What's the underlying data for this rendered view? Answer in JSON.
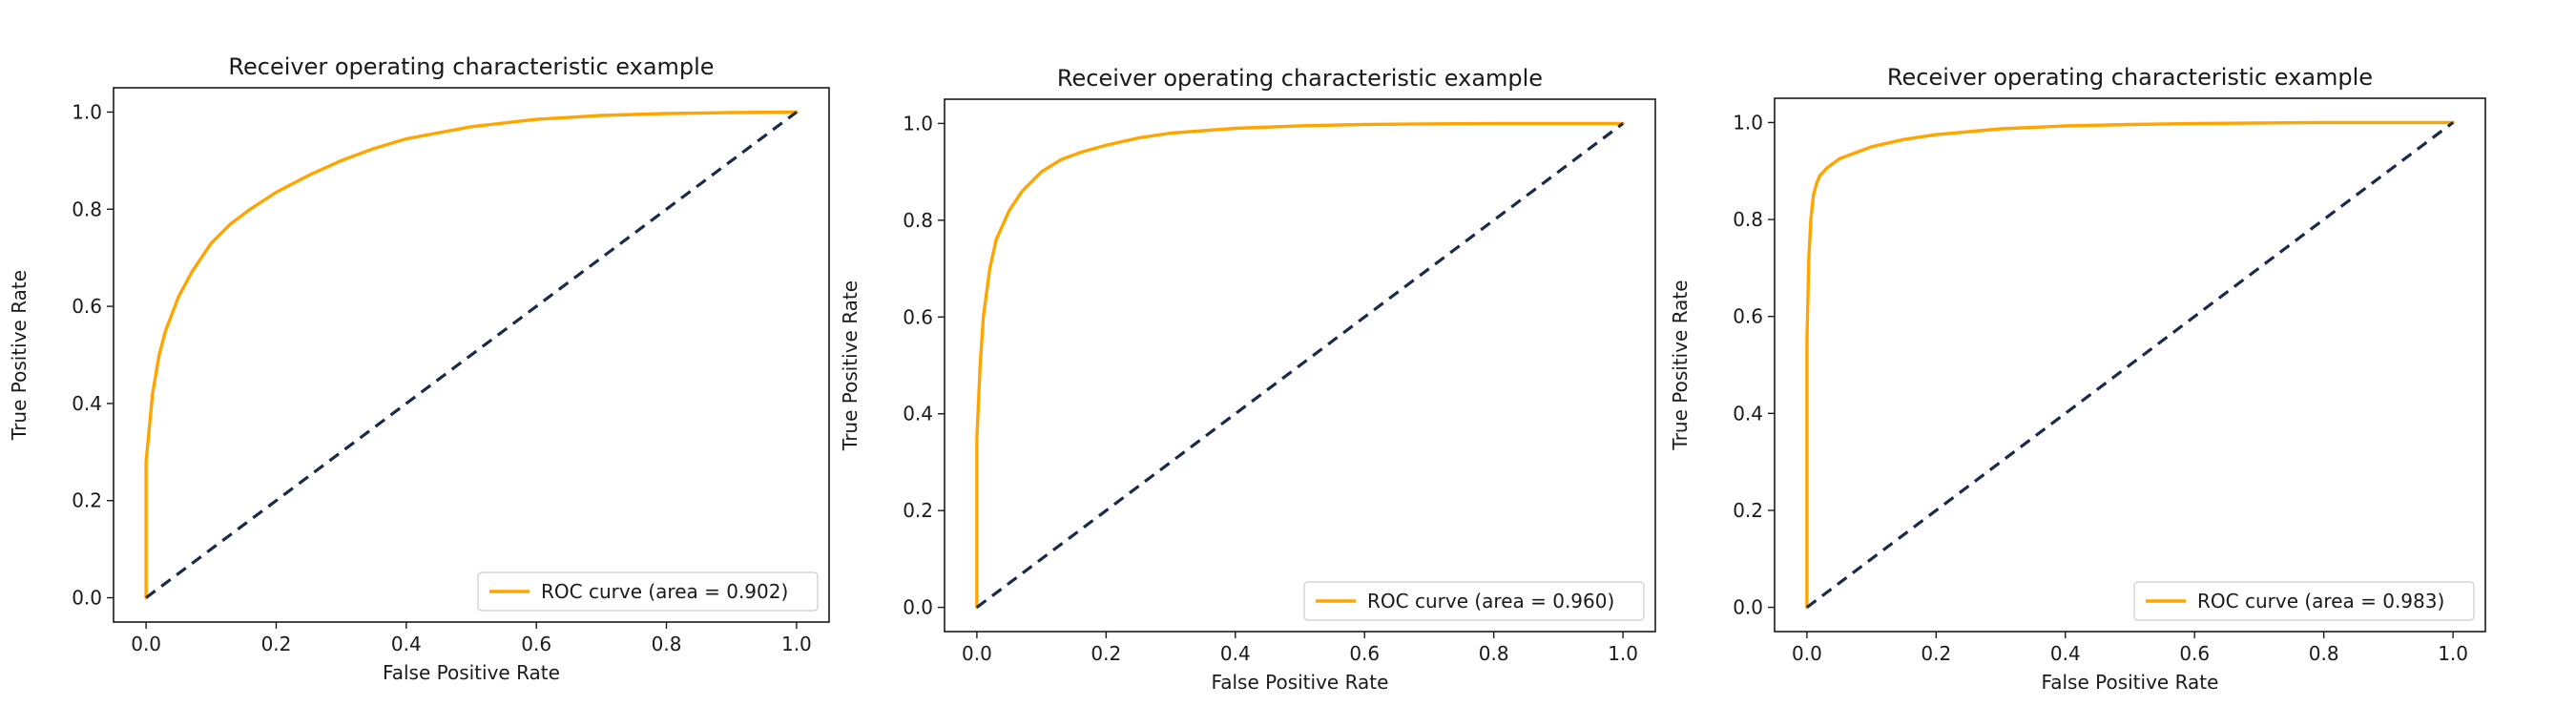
{
  "chart_data": [
    {
      "type": "line",
      "title": "Receiver operating characteristic example",
      "xlabel": "False Positive Rate",
      "ylabel": "True Positive Rate",
      "xlim": [
        0.0,
        1.0
      ],
      "ylim": [
        0.0,
        1.0
      ],
      "xticks": [
        "0.0",
        "0.2",
        "0.4",
        "0.6",
        "0.8",
        "1.0"
      ],
      "yticks": [
        "0.0",
        "0.2",
        "0.4",
        "0.6",
        "0.8",
        "1.0"
      ],
      "grid": false,
      "legend_position": "lower right",
      "series": [
        {
          "name": "ROC curve (area = 0.902)",
          "color": "#FFA500",
          "style": "solid",
          "x": [
            0.0,
            0.0,
            0.005,
            0.01,
            0.02,
            0.03,
            0.05,
            0.07,
            0.1,
            0.13,
            0.16,
            0.2,
            0.25,
            0.3,
            0.35,
            0.4,
            0.5,
            0.6,
            0.7,
            0.8,
            0.9,
            1.0
          ],
          "y": [
            0.0,
            0.28,
            0.35,
            0.42,
            0.5,
            0.55,
            0.62,
            0.67,
            0.73,
            0.77,
            0.8,
            0.835,
            0.87,
            0.9,
            0.925,
            0.945,
            0.97,
            0.985,
            0.993,
            0.997,
            0.999,
            1.0
          ]
        },
        {
          "name": "",
          "color": "#1b2a4a",
          "style": "dashed",
          "x": [
            0.0,
            1.0
          ],
          "y": [
            0.0,
            1.0
          ]
        }
      ]
    },
    {
      "type": "line",
      "title": "Receiver operating characteristic example",
      "xlabel": "False Positive Rate",
      "ylabel": "True Positive Rate",
      "xlim": [
        0.0,
        1.0
      ],
      "ylim": [
        0.0,
        1.0
      ],
      "xticks": [
        "0.0",
        "0.2",
        "0.4",
        "0.6",
        "0.8",
        "1.0"
      ],
      "yticks": [
        "0.0",
        "0.2",
        "0.4",
        "0.6",
        "0.8",
        "1.0"
      ],
      "grid": false,
      "legend_position": "lower right",
      "series": [
        {
          "name": "ROC curve (area = 0.960)",
          "color": "#FFA500",
          "style": "solid",
          "x": [
            0.0,
            0.0,
            0.005,
            0.01,
            0.02,
            0.03,
            0.05,
            0.07,
            0.1,
            0.13,
            0.16,
            0.2,
            0.25,
            0.3,
            0.4,
            0.5,
            0.6,
            0.8,
            1.0
          ],
          "y": [
            0.0,
            0.35,
            0.5,
            0.6,
            0.7,
            0.76,
            0.82,
            0.86,
            0.9,
            0.925,
            0.94,
            0.955,
            0.97,
            0.98,
            0.99,
            0.995,
            0.998,
            1.0,
            1.0
          ]
        },
        {
          "name": "",
          "color": "#1b2a4a",
          "style": "dashed",
          "x": [
            0.0,
            1.0
          ],
          "y": [
            0.0,
            1.0
          ]
        }
      ]
    },
    {
      "type": "line",
      "title": "Receiver operating characteristic example",
      "xlabel": "False Positive Rate",
      "ylabel": "True Positive Rate",
      "xlim": [
        0.0,
        1.0
      ],
      "ylim": [
        0.0,
        1.0
      ],
      "xticks": [
        "0.0",
        "0.2",
        "0.4",
        "0.6",
        "0.8",
        "1.0"
      ],
      "yticks": [
        "0.0",
        "0.2",
        "0.4",
        "0.6",
        "0.8",
        "1.0"
      ],
      "grid": false,
      "legend_position": "lower right",
      "series": [
        {
          "name": "ROC curve (area = 0.983)",
          "color": "#FFA500",
          "style": "solid",
          "x": [
            0.0,
            0.0,
            0.003,
            0.006,
            0.01,
            0.015,
            0.02,
            0.03,
            0.05,
            0.08,
            0.1,
            0.15,
            0.2,
            0.3,
            0.4,
            0.5,
            0.6,
            0.8,
            1.0
          ],
          "y": [
            0.0,
            0.55,
            0.72,
            0.8,
            0.85,
            0.875,
            0.89,
            0.905,
            0.925,
            0.94,
            0.95,
            0.965,
            0.975,
            0.987,
            0.993,
            0.996,
            0.998,
            1.0,
            1.0
          ]
        },
        {
          "name": "",
          "color": "#1b2a4a",
          "style": "dashed",
          "x": [
            0.0,
            1.0
          ],
          "y": [
            0.0,
            1.0
          ]
        }
      ]
    }
  ]
}
